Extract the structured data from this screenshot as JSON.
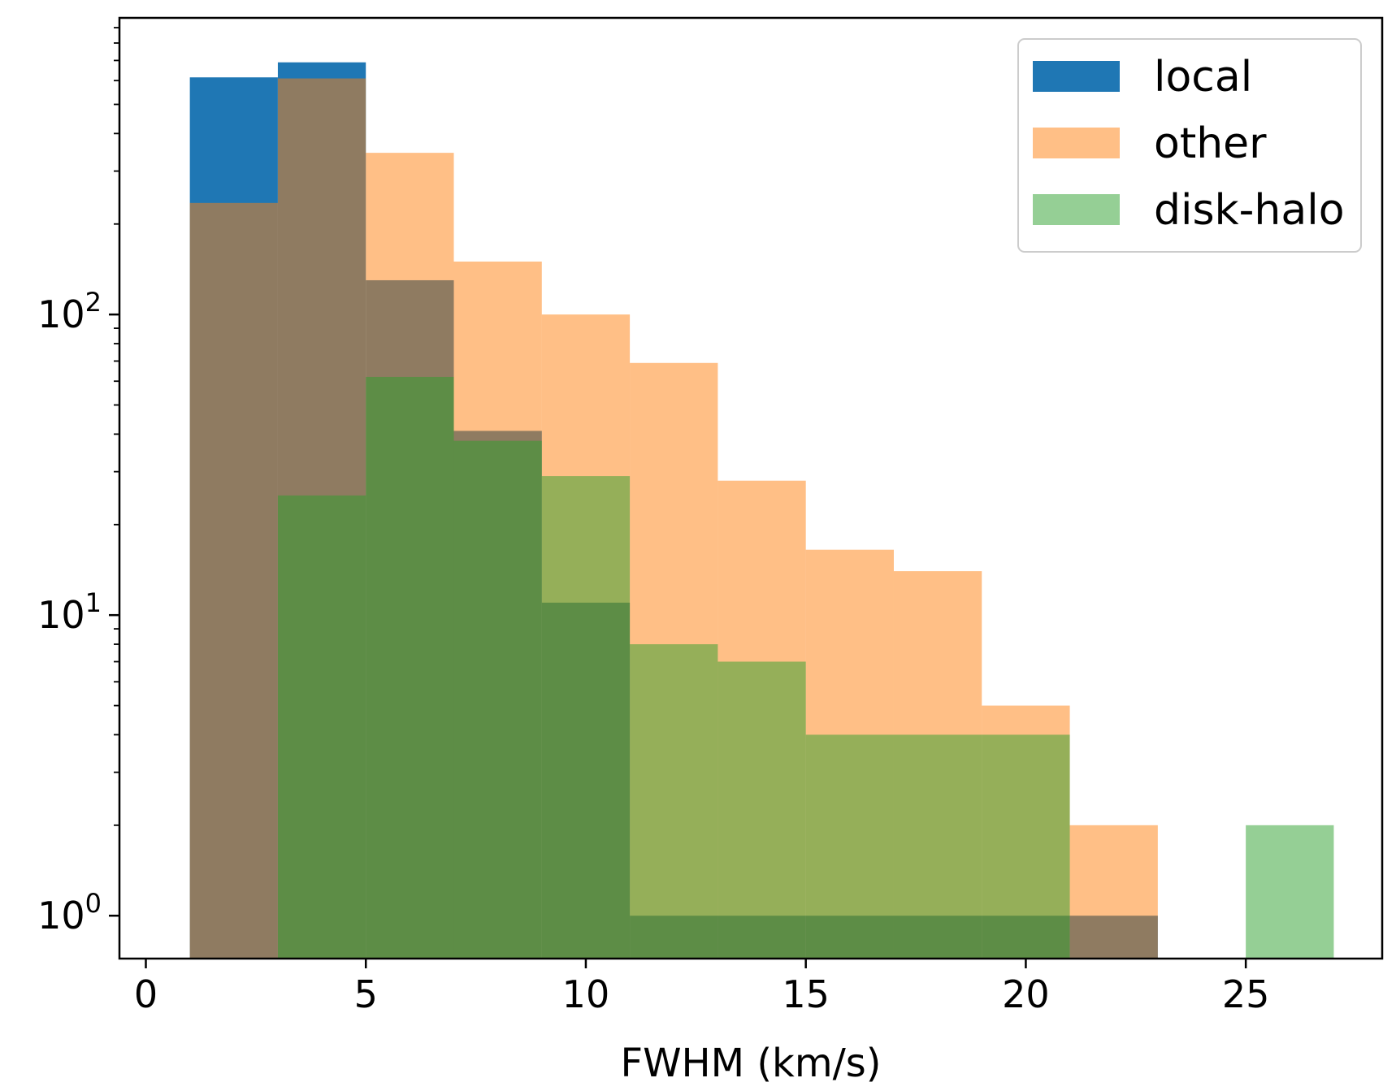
{
  "chart_data": {
    "type": "bar",
    "subtype": "histogram-overlay",
    "title": "",
    "xlabel": "FWHM (km/s)",
    "ylabel": "",
    "xlim": [
      -0.6,
      28.1
    ],
    "ylim": [
      0.72,
      970
    ],
    "yscale": "log",
    "grid": false,
    "legend_position": "top-right",
    "x_ticks": [
      0,
      5,
      10,
      15,
      20,
      25
    ],
    "x_tick_labels": [
      "0",
      "5",
      "10",
      "15",
      "20",
      "25"
    ],
    "y_major_ticks": [
      1,
      10,
      100
    ],
    "y_tick_label_bases": [
      "10",
      "10",
      "10"
    ],
    "y_tick_label_exponents": [
      "0",
      "1",
      "2"
    ],
    "y_minor_ticks": [
      2,
      3,
      4,
      5,
      6,
      7,
      8,
      9,
      20,
      30,
      40,
      50,
      60,
      70,
      80,
      90,
      200,
      300,
      400,
      500,
      600,
      700,
      800,
      900
    ],
    "bin_edges": [
      1,
      3,
      5,
      7,
      9,
      11,
      13,
      15,
      17,
      19,
      21,
      23,
      25,
      27
    ],
    "series": [
      {
        "name": "local",
        "color": "#1f77b4",
        "alpha": 1.0,
        "counts": [
          615,
          690,
          130,
          41,
          11,
          1,
          1,
          1,
          1,
          1,
          1,
          0,
          0
        ]
      },
      {
        "name": "other",
        "color": "#ff7f0e",
        "alpha": 0.5,
        "counts": [
          235,
          610,
          345,
          150,
          100,
          69,
          28,
          16.5,
          14,
          5,
          2,
          0,
          0
        ]
      },
      {
        "name": "disk-halo",
        "color": "#2ca02c",
        "alpha": 0.5,
        "counts": [
          0,
          25,
          62,
          38,
          29,
          8,
          7,
          4,
          4,
          4,
          0,
          0,
          2
        ]
      }
    ],
    "legend": {
      "entries": [
        "local",
        "other",
        "disk-halo"
      ]
    }
  }
}
